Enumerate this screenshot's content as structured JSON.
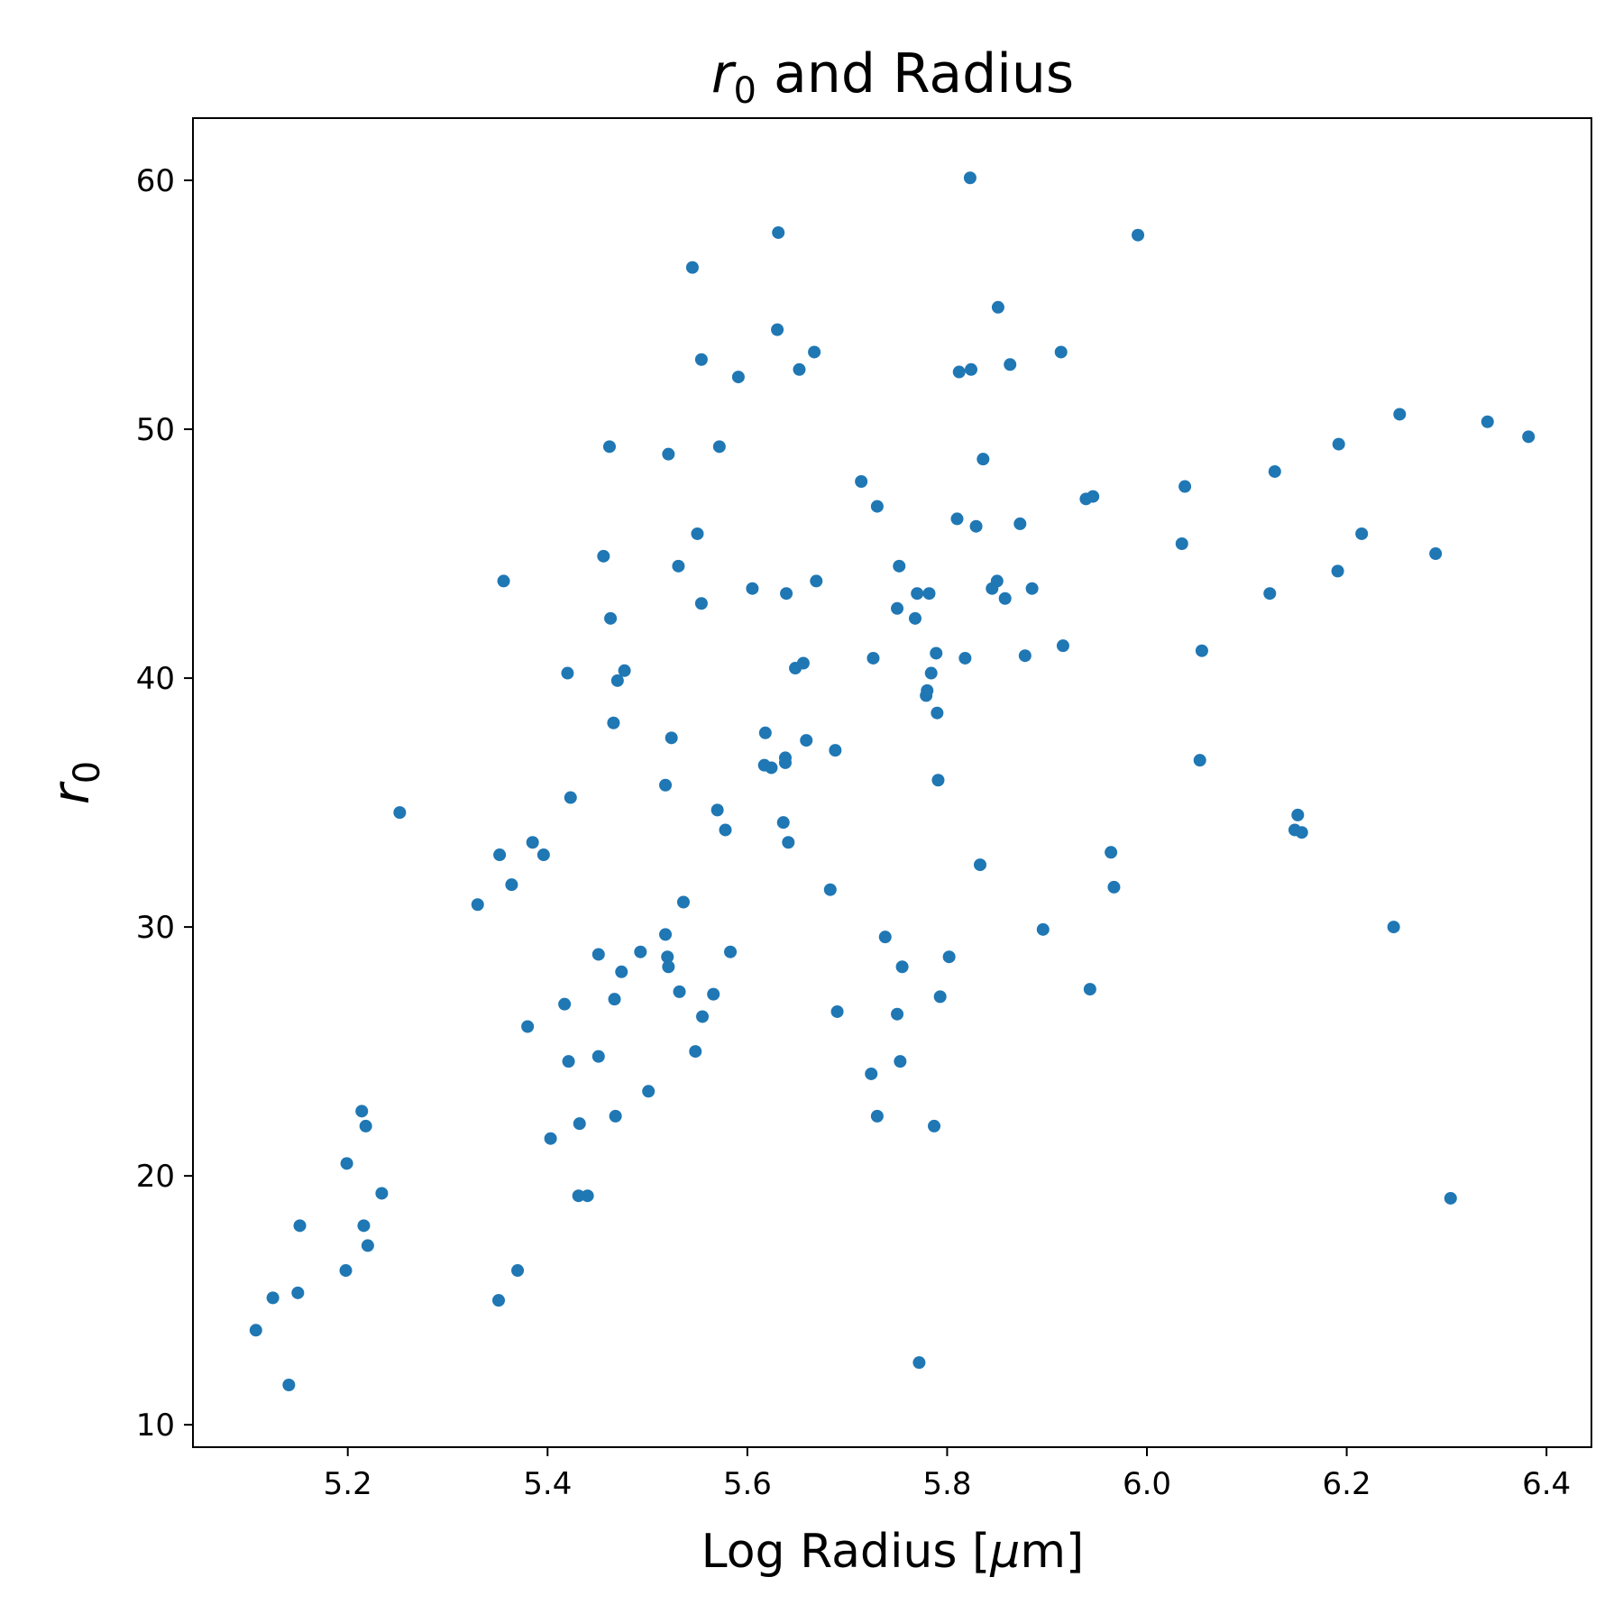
{
  "chart_data": {
    "type": "scatter",
    "title": {
      "math": "r",
      "sub": "0",
      "rest": " and Radius"
    },
    "xlabel": {
      "pre": "Log Radius [",
      "math": "μ",
      "post": "m]"
    },
    "ylabel": {
      "math": "r",
      "sub": "0"
    },
    "xlim": [
      5.045,
      6.445
    ],
    "ylim": [
      9.1,
      62.5
    ],
    "xticks": [
      5.2,
      5.4,
      5.6,
      5.8,
      6.0,
      6.2,
      6.4
    ],
    "xtick_labels": [
      "5.2",
      "5.4",
      "5.6",
      "5.8",
      "6.0",
      "6.2",
      "6.4"
    ],
    "yticks": [
      10,
      20,
      30,
      40,
      50,
      60
    ],
    "ytick_labels": [
      "10",
      "20",
      "30",
      "40",
      "50",
      "60"
    ],
    "grid": false,
    "legend": "none",
    "colors": {
      "marker": "#1f77b4",
      "axes": "#000000",
      "background": "#ffffff"
    },
    "points": [
      [
        5.108,
        13.8
      ],
      [
        5.125,
        15.1
      ],
      [
        5.141,
        11.6
      ],
      [
        5.15,
        15.3
      ],
      [
        5.152,
        18.0
      ],
      [
        5.198,
        16.2
      ],
      [
        5.199,
        20.5
      ],
      [
        5.214,
        22.6
      ],
      [
        5.216,
        18.0
      ],
      [
        5.218,
        22.0
      ],
      [
        5.22,
        17.2
      ],
      [
        5.234,
        19.3
      ],
      [
        5.252,
        34.6
      ],
      [
        5.33,
        30.9
      ],
      [
        5.351,
        15.0
      ],
      [
        5.352,
        32.9
      ],
      [
        5.356,
        43.9
      ],
      [
        5.364,
        31.7
      ],
      [
        5.37,
        16.2
      ],
      [
        5.38,
        26.0
      ],
      [
        5.385,
        33.4
      ],
      [
        5.396,
        32.9
      ],
      [
        5.403,
        21.5
      ],
      [
        5.417,
        26.9
      ],
      [
        5.42,
        40.2
      ],
      [
        5.421,
        24.6
      ],
      [
        5.423,
        35.2
      ],
      [
        5.431,
        19.2
      ],
      [
        5.432,
        22.1
      ],
      [
        5.44,
        19.2
      ],
      [
        5.451,
        24.8
      ],
      [
        5.451,
        28.9
      ],
      [
        5.456,
        44.9
      ],
      [
        5.462,
        49.3
      ],
      [
        5.463,
        42.4
      ],
      [
        5.466,
        38.2
      ],
      [
        5.467,
        27.1
      ],
      [
        5.468,
        22.4
      ],
      [
        5.47,
        39.9
      ],
      [
        5.474,
        28.2
      ],
      [
        5.477,
        40.3
      ],
      [
        5.493,
        29.0
      ],
      [
        5.501,
        23.4
      ],
      [
        5.518,
        29.7
      ],
      [
        5.518,
        35.7
      ],
      [
        5.52,
        28.8
      ],
      [
        5.521,
        49.0
      ],
      [
        5.521,
        28.4
      ],
      [
        5.524,
        37.6
      ],
      [
        5.531,
        44.5
      ],
      [
        5.532,
        27.4
      ],
      [
        5.536,
        31.0
      ],
      [
        5.545,
        56.5
      ],
      [
        5.548,
        25.0
      ],
      [
        5.55,
        45.8
      ],
      [
        5.554,
        52.8
      ],
      [
        5.554,
        43.0
      ],
      [
        5.555,
        26.4
      ],
      [
        5.566,
        27.3
      ],
      [
        5.57,
        34.7
      ],
      [
        5.572,
        49.3
      ],
      [
        5.578,
        33.9
      ],
      [
        5.583,
        29.0
      ],
      [
        5.591,
        52.1
      ],
      [
        5.605,
        43.6
      ],
      [
        5.617,
        36.5
      ],
      [
        5.618,
        37.8
      ],
      [
        5.624,
        36.4
      ],
      [
        5.63,
        54.0
      ],
      [
        5.631,
        57.9
      ],
      [
        5.636,
        34.2
      ],
      [
        5.638,
        36.8
      ],
      [
        5.638,
        36.6
      ],
      [
        5.639,
        43.4
      ],
      [
        5.641,
        33.4
      ],
      [
        5.648,
        40.4
      ],
      [
        5.652,
        52.4
      ],
      [
        5.656,
        40.6
      ],
      [
        5.659,
        37.5
      ],
      [
        5.667,
        53.1
      ],
      [
        5.669,
        43.9
      ],
      [
        5.683,
        31.5
      ],
      [
        5.688,
        37.1
      ],
      [
        5.69,
        26.6
      ],
      [
        5.714,
        47.9
      ],
      [
        5.724,
        24.1
      ],
      [
        5.726,
        40.8
      ],
      [
        5.73,
        22.4
      ],
      [
        5.73,
        46.9
      ],
      [
        5.738,
        29.6
      ],
      [
        5.75,
        26.5
      ],
      [
        5.75,
        42.8
      ],
      [
        5.752,
        44.5
      ],
      [
        5.753,
        24.6
      ],
      [
        5.755,
        28.4
      ],
      [
        5.768,
        42.4
      ],
      [
        5.77,
        43.4
      ],
      [
        5.772,
        12.5
      ],
      [
        5.779,
        39.3
      ],
      [
        5.78,
        39.5
      ],
      [
        5.782,
        43.4
      ],
      [
        5.784,
        40.2
      ],
      [
        5.787,
        22.0
      ],
      [
        5.789,
        41.0
      ],
      [
        5.79,
        38.6
      ],
      [
        5.791,
        35.9
      ],
      [
        5.793,
        27.2
      ],
      [
        5.802,
        28.8
      ],
      [
        5.81,
        46.4
      ],
      [
        5.812,
        52.3
      ],
      [
        5.818,
        40.8
      ],
      [
        5.823,
        60.1
      ],
      [
        5.824,
        52.4
      ],
      [
        5.829,
        46.1
      ],
      [
        5.833,
        32.5
      ],
      [
        5.836,
        48.8
      ],
      [
        5.845,
        43.6
      ],
      [
        5.85,
        43.9
      ],
      [
        5.851,
        54.9
      ],
      [
        5.858,
        43.2
      ],
      [
        5.863,
        52.6
      ],
      [
        5.873,
        46.2
      ],
      [
        5.878,
        40.9
      ],
      [
        5.885,
        43.6
      ],
      [
        5.896,
        29.9
      ],
      [
        5.914,
        53.1
      ],
      [
        5.916,
        41.3
      ],
      [
        5.939,
        47.2
      ],
      [
        5.943,
        27.5
      ],
      [
        5.946,
        47.3
      ],
      [
        5.964,
        33.0
      ],
      [
        5.967,
        31.6
      ],
      [
        5.991,
        57.8
      ],
      [
        6.035,
        45.4
      ],
      [
        6.038,
        47.7
      ],
      [
        6.053,
        36.7
      ],
      [
        6.055,
        41.1
      ],
      [
        6.123,
        43.4
      ],
      [
        6.128,
        48.3
      ],
      [
        6.148,
        33.9
      ],
      [
        6.151,
        34.5
      ],
      [
        6.155,
        33.8
      ],
      [
        6.191,
        44.3
      ],
      [
        6.192,
        49.4
      ],
      [
        6.215,
        45.8
      ],
      [
        6.247,
        30.0
      ],
      [
        6.253,
        50.6
      ],
      [
        6.289,
        45.0
      ],
      [
        6.304,
        19.1
      ],
      [
        6.341,
        50.3
      ],
      [
        6.382,
        49.7
      ]
    ]
  }
}
